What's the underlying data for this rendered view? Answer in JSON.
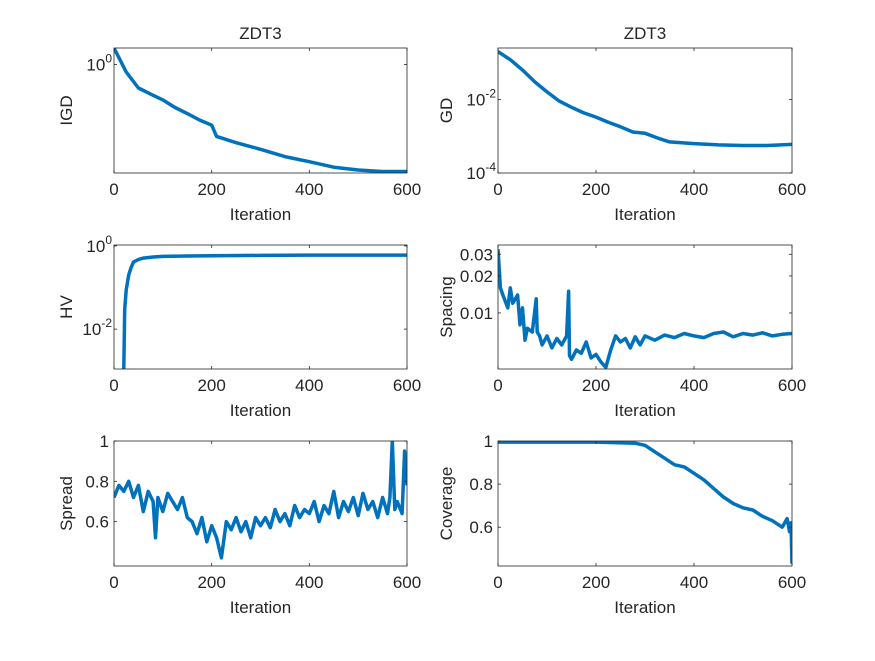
{
  "chart_data": [
    {
      "type": "line",
      "title": "ZDT3",
      "xlabel": "Iteration",
      "ylabel": "IGD",
      "yscale": "log",
      "xlim": [
        0,
        600
      ],
      "ylim": [
        0.3,
        1.2
      ],
      "xticks": [
        {
          "v": 0,
          "label": "0"
        },
        {
          "v": 200,
          "label": "200"
        },
        {
          "v": 400,
          "label": "400"
        },
        {
          "v": 600,
          "label": "600"
        }
      ],
      "yticks": [
        {
          "v": 1,
          "label": "10",
          "sup": "0"
        }
      ],
      "x": [
        0,
        25,
        50,
        75,
        100,
        125,
        150,
        175,
        200,
        210,
        250,
        300,
        350,
        400,
        450,
        500,
        550,
        600
      ],
      "y": [
        1.2,
        0.92,
        0.77,
        0.72,
        0.675,
        0.62,
        0.58,
        0.54,
        0.51,
        0.45,
        0.42,
        0.39,
        0.36,
        0.34,
        0.32,
        0.31,
        0.305,
        0.305
      ],
      "color": "#0072BD"
    },
    {
      "type": "line",
      "title": "ZDT3",
      "xlabel": "Iteration",
      "ylabel": "GD",
      "yscale": "log",
      "xlim": [
        0,
        600
      ],
      "ylim": [
        0.0001,
        0.25
      ],
      "xticks": [
        {
          "v": 0,
          "label": "0"
        },
        {
          "v": 200,
          "label": "200"
        },
        {
          "v": 400,
          "label": "400"
        },
        {
          "v": 600,
          "label": "600"
        }
      ],
      "yticks": [
        {
          "v": 0.01,
          "label": "10",
          "sup": "-2"
        },
        {
          "v": 0.0001,
          "label": "10",
          "sup": "-4"
        }
      ],
      "x": [
        0,
        25,
        50,
        75,
        100,
        125,
        150,
        175,
        200,
        225,
        250,
        275,
        300,
        325,
        350,
        400,
        450,
        500,
        550,
        600
      ],
      "y": [
        0.2,
        0.12,
        0.063,
        0.03,
        0.016,
        0.009,
        0.0061,
        0.0043,
        0.0033,
        0.0024,
        0.0018,
        0.0013,
        0.0012,
        0.0009,
        0.0007,
        0.00063,
        0.00058,
        0.00056,
        0.00056,
        0.0006
      ],
      "color": "#0072BD"
    },
    {
      "type": "line",
      "title": "",
      "xlabel": "Iteration",
      "ylabel": "HV",
      "yscale": "log",
      "xlim": [
        0,
        600
      ],
      "ylim": [
        0.0011,
        1.05
      ],
      "xticks": [
        {
          "v": 0,
          "label": "0"
        },
        {
          "v": 200,
          "label": "200"
        },
        {
          "v": 400,
          "label": "400"
        },
        {
          "v": 600,
          "label": "600"
        }
      ],
      "yticks": [
        {
          "v": 1,
          "label": "10",
          "sup": "0"
        },
        {
          "v": 0.01,
          "label": "10",
          "sup": "-2"
        }
      ],
      "x": [
        20,
        22,
        25,
        30,
        35,
        40,
        50,
        60,
        80,
        100,
        150,
        200,
        300,
        400,
        500,
        600
      ],
      "y": [
        0.0011,
        0.03,
        0.087,
        0.2,
        0.3,
        0.41,
        0.47,
        0.51,
        0.54,
        0.56,
        0.57,
        0.58,
        0.59,
        0.6,
        0.6,
        0.6
      ],
      "color": "#0072BD"
    },
    {
      "type": "line",
      "title": "",
      "xlabel": "Iteration",
      "ylabel": "Spacing",
      "yscale": "log",
      "xlim": [
        0,
        600
      ],
      "ylim": [
        0.0035,
        0.0357
      ],
      "xticks": [
        {
          "v": 0,
          "label": "0"
        },
        {
          "v": 200,
          "label": "200"
        },
        {
          "v": 400,
          "label": "400"
        },
        {
          "v": 600,
          "label": "600"
        }
      ],
      "yticks": [
        {
          "v": 0.03,
          "label": "0.03"
        },
        {
          "v": 0.02,
          "label": "0.02"
        },
        {
          "v": 0.01,
          "label": "0.01"
        }
      ],
      "x": [
        0,
        5,
        10,
        20,
        25,
        30,
        40,
        45,
        50,
        55,
        60,
        70,
        78,
        80,
        85,
        90,
        100,
        110,
        120,
        130,
        140,
        144,
        146,
        150,
        160,
        170,
        180,
        190,
        200,
        210,
        220,
        230,
        240,
        250,
        260,
        270,
        280,
        290,
        300,
        320,
        340,
        360,
        380,
        400,
        420,
        440,
        460,
        480,
        500,
        520,
        540,
        560,
        580,
        600
      ],
      "y": [
        0.033,
        0.016,
        0.014,
        0.011,
        0.016,
        0.012,
        0.014,
        0.008,
        0.011,
        0.006,
        0.0075,
        0.007,
        0.013,
        0.007,
        0.0065,
        0.0055,
        0.0065,
        0.0052,
        0.0062,
        0.0055,
        0.0065,
        0.015,
        0.0045,
        0.0042,
        0.005,
        0.0047,
        0.0058,
        0.0043,
        0.0046,
        0.004,
        0.0036,
        0.005,
        0.0065,
        0.0058,
        0.0062,
        0.0052,
        0.0064,
        0.0055,
        0.0065,
        0.006,
        0.0066,
        0.0063,
        0.0068,
        0.0065,
        0.0063,
        0.0068,
        0.007,
        0.0064,
        0.0068,
        0.0066,
        0.0069,
        0.0065,
        0.0067,
        0.0068
      ],
      "color": "#0072BD"
    },
    {
      "type": "line",
      "title": "",
      "xlabel": "Iteration",
      "ylabel": "Spread",
      "yscale": "linear",
      "xlim": [
        0,
        600
      ],
      "ylim": [
        0.38,
        1.0
      ],
      "xticks": [
        {
          "v": 0,
          "label": "0"
        },
        {
          "v": 200,
          "label": "200"
        },
        {
          "v": 400,
          "label": "400"
        },
        {
          "v": 600,
          "label": "600"
        }
      ],
      "yticks": [
        {
          "v": 1,
          "label": "1"
        },
        {
          "v": 0.8,
          "label": "0.8"
        },
        {
          "v": 0.6,
          "label": "0.6"
        }
      ],
      "x": [
        0,
        10,
        20,
        30,
        40,
        50,
        60,
        70,
        80,
        85,
        90,
        100,
        110,
        120,
        130,
        140,
        150,
        160,
        170,
        180,
        190,
        200,
        210,
        220,
        230,
        240,
        250,
        260,
        270,
        280,
        290,
        300,
        310,
        320,
        330,
        340,
        350,
        360,
        370,
        380,
        390,
        400,
        410,
        420,
        430,
        440,
        450,
        460,
        470,
        480,
        490,
        500,
        510,
        520,
        530,
        540,
        550,
        560,
        565,
        570,
        575,
        580,
        590,
        595,
        600
      ],
      "y": [
        0.72,
        0.78,
        0.75,
        0.8,
        0.72,
        0.78,
        0.65,
        0.75,
        0.7,
        0.52,
        0.72,
        0.65,
        0.74,
        0.7,
        0.66,
        0.72,
        0.62,
        0.6,
        0.54,
        0.62,
        0.5,
        0.58,
        0.52,
        0.42,
        0.6,
        0.56,
        0.62,
        0.55,
        0.6,
        0.52,
        0.62,
        0.58,
        0.62,
        0.57,
        0.66,
        0.6,
        0.64,
        0.58,
        0.68,
        0.62,
        0.66,
        0.64,
        0.7,
        0.6,
        0.68,
        0.64,
        0.75,
        0.62,
        0.7,
        0.65,
        0.72,
        0.63,
        0.74,
        0.66,
        0.7,
        0.62,
        0.72,
        0.64,
        0.72,
        1.0,
        0.66,
        0.7,
        0.64,
        0.95,
        0.78
      ],
      "color": "#0072BD"
    },
    {
      "type": "line",
      "title": "",
      "xlabel": "Iteration",
      "ylabel": "Coverage",
      "yscale": "linear",
      "xlim": [
        0,
        600
      ],
      "ylim": [
        0.42,
        1.0
      ],
      "xticks": [
        {
          "v": 0,
          "label": "0"
        },
        {
          "v": 200,
          "label": "200"
        },
        {
          "v": 400,
          "label": "400"
        },
        {
          "v": 600,
          "label": "600"
        }
      ],
      "yticks": [
        {
          "v": 1,
          "label": "1"
        },
        {
          "v": 0.8,
          "label": "0.8"
        },
        {
          "v": 0.6,
          "label": "0.6"
        }
      ],
      "x": [
        0,
        100,
        200,
        280,
        300,
        320,
        340,
        360,
        380,
        400,
        420,
        440,
        460,
        480,
        500,
        520,
        540,
        560,
        580,
        590,
        595,
        598,
        600
      ],
      "y": [
        0.995,
        0.995,
        0.995,
        0.99,
        0.98,
        0.95,
        0.92,
        0.89,
        0.88,
        0.85,
        0.82,
        0.78,
        0.74,
        0.71,
        0.69,
        0.68,
        0.65,
        0.63,
        0.6,
        0.64,
        0.58,
        0.62,
        0.43
      ],
      "color": "#0072BD"
    }
  ]
}
